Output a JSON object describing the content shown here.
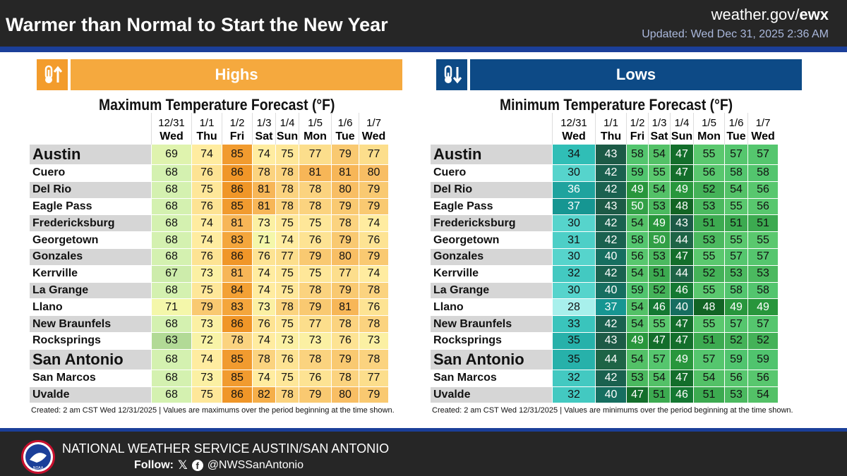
{
  "header": {
    "title": "Warmer than Normal to Start the New Year",
    "site_plain": "weather.gov/",
    "site_bold": "ewx",
    "updated": "Updated: Wed Dec 31, 2025 2:36 AM"
  },
  "colors": {
    "highs_accent": "#f39c2c",
    "lows_accent": "#0d4a86",
    "brand_blue": "#1b3f99"
  },
  "highs": {
    "label": "Highs",
    "icon": "thermometer-up-icon",
    "created": "Created: 2 am CST Wed 12/31/2025  |  Values are maximums over the period beginning at the time shown."
  },
  "lows": {
    "label": "Lows",
    "icon": "thermometer-down-icon",
    "created": "Created: 2 am CST Wed 12/31/2025  |  Values are minimums over the period beginning at the time shown."
  },
  "chart_data": [
    {
      "type": "table",
      "title": "Maximum Temperature Forecast (°F)",
      "columns": [
        {
          "date": "12/31",
          "day": "Wed"
        },
        {
          "date": "1/1",
          "day": "Thu"
        },
        {
          "date": "1/2",
          "day": "Fri"
        },
        {
          "date": "1/3",
          "day": "Sat"
        },
        {
          "date": "1/4",
          "day": "Sun"
        },
        {
          "date": "1/5",
          "day": "Mon"
        },
        {
          "date": "1/6",
          "day": "Tue"
        },
        {
          "date": "1/7",
          "day": "Wed"
        }
      ],
      "rows": [
        {
          "city": "Austin",
          "values": [
            69,
            74,
            85,
            74,
            75,
            77,
            79,
            77
          ]
        },
        {
          "city": "Cuero",
          "values": [
            68,
            76,
            86,
            78,
            78,
            81,
            81,
            80
          ]
        },
        {
          "city": "Del Rio",
          "values": [
            68,
            75,
            86,
            81,
            78,
            78,
            80,
            79
          ]
        },
        {
          "city": "Eagle Pass",
          "values": [
            68,
            76,
            85,
            81,
            78,
            78,
            79,
            79
          ]
        },
        {
          "city": "Fredericksburg",
          "values": [
            68,
            74,
            81,
            73,
            75,
            75,
            78,
            74
          ]
        },
        {
          "city": "Georgetown",
          "values": [
            68,
            74,
            83,
            71,
            74,
            76,
            79,
            76
          ]
        },
        {
          "city": "Gonzales",
          "values": [
            68,
            76,
            86,
            76,
            77,
            79,
            80,
            79
          ]
        },
        {
          "city": "Kerrville",
          "values": [
            67,
            73,
            81,
            74,
            75,
            75,
            77,
            74
          ]
        },
        {
          "city": "La Grange",
          "values": [
            68,
            75,
            84,
            74,
            75,
            78,
            79,
            78
          ]
        },
        {
          "city": "Llano",
          "values": [
            71,
            79,
            83,
            73,
            78,
            79,
            81,
            76
          ]
        },
        {
          "city": "New Braunfels",
          "values": [
            68,
            73,
            86,
            76,
            75,
            77,
            78,
            78
          ]
        },
        {
          "city": "Rocksprings",
          "values": [
            63,
            72,
            78,
            74,
            73,
            73,
            76,
            73
          ]
        },
        {
          "city": "San Antonio",
          "values": [
            68,
            74,
            85,
            78,
            76,
            78,
            79,
            78
          ]
        },
        {
          "city": "San Marcos",
          "values": [
            68,
            73,
            85,
            74,
            75,
            76,
            78,
            77
          ]
        },
        {
          "city": "Uvalde",
          "values": [
            68,
            75,
            86,
            82,
            78,
            79,
            80,
            79
          ]
        }
      ]
    },
    {
      "type": "table",
      "title": "Minimum Temperature Forecast (°F)",
      "columns": [
        {
          "date": "12/31",
          "day": "Wed"
        },
        {
          "date": "1/1",
          "day": "Thu"
        },
        {
          "date": "1/2",
          "day": "Fri"
        },
        {
          "date": "1/3",
          "day": "Sat"
        },
        {
          "date": "1/4",
          "day": "Sun"
        },
        {
          "date": "1/5",
          "day": "Mon"
        },
        {
          "date": "1/6",
          "day": "Tue"
        },
        {
          "date": "1/7",
          "day": "Wed"
        }
      ],
      "rows": [
        {
          "city": "Austin",
          "values": [
            34,
            43,
            58,
            54,
            47,
            55,
            57,
            57
          ]
        },
        {
          "city": "Cuero",
          "values": [
            30,
            42,
            59,
            55,
            47,
            56,
            58,
            58
          ]
        },
        {
          "city": "Del Rio",
          "values": [
            36,
            42,
            49,
            54,
            49,
            52,
            54,
            56
          ]
        },
        {
          "city": "Eagle Pass",
          "values": [
            37,
            43,
            50,
            53,
            48,
            53,
            55,
            56
          ]
        },
        {
          "city": "Fredericksburg",
          "values": [
            30,
            42,
            54,
            49,
            43,
            51,
            51,
            51
          ]
        },
        {
          "city": "Georgetown",
          "values": [
            31,
            42,
            58,
            50,
            44,
            53,
            55,
            55
          ]
        },
        {
          "city": "Gonzales",
          "values": [
            30,
            40,
            56,
            53,
            47,
            55,
            57,
            57
          ]
        },
        {
          "city": "Kerrville",
          "values": [
            32,
            42,
            54,
            51,
            44,
            52,
            53,
            53
          ]
        },
        {
          "city": "La Grange",
          "values": [
            30,
            40,
            59,
            52,
            46,
            55,
            58,
            58
          ]
        },
        {
          "city": "Llano",
          "values": [
            28,
            37,
            54,
            46,
            40,
            48,
            49,
            49
          ]
        },
        {
          "city": "New Braunfels",
          "values": [
            33,
            42,
            54,
            55,
            47,
            55,
            57,
            57
          ]
        },
        {
          "city": "Rocksprings",
          "values": [
            35,
            43,
            49,
            47,
            47,
            51,
            52,
            52
          ]
        },
        {
          "city": "San Antonio",
          "values": [
            35,
            44,
            54,
            57,
            49,
            57,
            59,
            59
          ]
        },
        {
          "city": "San Marcos",
          "values": [
            32,
            42,
            53,
            54,
            47,
            54,
            56,
            56
          ]
        },
        {
          "city": "Uvalde",
          "values": [
            32,
            40,
            47,
            51,
            46,
            51,
            53,
            54
          ]
        }
      ]
    }
  ],
  "footer": {
    "office": "NATIONAL WEATHER SERVICE AUSTIN/SAN ANTONIO",
    "follow_label": "Follow:",
    "handle": "@NWSSanAntonio",
    "logo_text": "NOAA"
  }
}
